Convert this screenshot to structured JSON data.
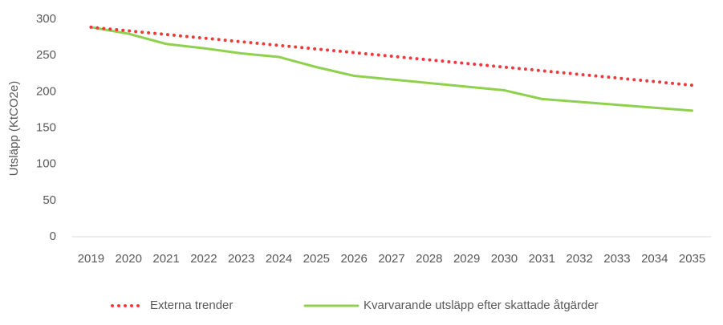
{
  "chart_data": {
    "type": "line",
    "y_label": "Utsläpp (KtCO2e)",
    "categories": [
      "2019",
      "2020",
      "2021",
      "2022",
      "2023",
      "2024",
      "2025",
      "2026",
      "2027",
      "2028",
      "2029",
      "2030",
      "2031",
      "2032",
      "2033",
      "2034",
      "2035"
    ],
    "series": [
      {
        "name": "Externa trender",
        "color": "#f03a3a",
        "style": "dotted",
        "values": [
          289,
          284,
          279,
          274,
          269,
          264,
          259,
          254,
          249,
          244,
          239,
          234,
          229,
          224,
          219,
          214,
          209
        ]
      },
      {
        "name": "Kvarvarande utsläpp efter skattade åtgärder",
        "color": "#8fd14f",
        "style": "solid",
        "values": [
          289,
          280,
          266,
          260,
          253,
          248,
          234,
          222,
          217,
          212,
          207,
          202,
          190,
          186,
          182,
          178,
          174
        ]
      }
    ],
    "ylim": [
      0,
      300
    ],
    "yticks": [
      0,
      50,
      100,
      150,
      200,
      250,
      300
    ],
    "grid": false,
    "legend": "bottom"
  }
}
